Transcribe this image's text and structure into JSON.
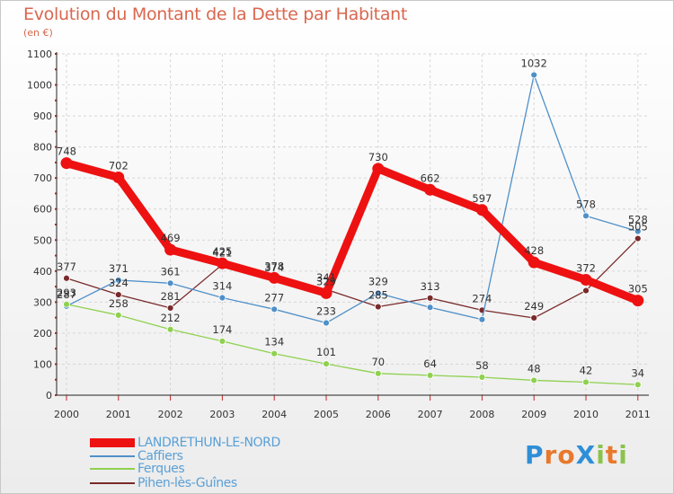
{
  "header": {
    "title": "Evolution du Montant de la Dette par Habitant",
    "subtitle": "(en €)"
  },
  "logo": {
    "text": "ProXiti",
    "letters": [
      "P",
      "r",
      "o",
      "X",
      "i",
      "t",
      "i"
    ],
    "colors": [
      "#2f8fd6",
      "#e8792b",
      "#e8792b",
      "#2f8fd6",
      "#8bc34a",
      "#e8792b",
      "#8bc34a"
    ]
  },
  "chart_data": {
    "type": "line",
    "title": "Evolution du Montant de la Dette par Habitant",
    "subtitle": "(en €)",
    "x": [
      "2000",
      "2001",
      "2002",
      "2003",
      "2004",
      "2005",
      "2006",
      "2007",
      "2008",
      "2009",
      "2010",
      "2011"
    ],
    "ylim": [
      0,
      1100
    ],
    "yticks": [
      0,
      100,
      200,
      300,
      400,
      500,
      600,
      700,
      800,
      900,
      1000,
      1100
    ],
    "grid": true,
    "legend_position": "bottom-left",
    "series": [
      {
        "name": "Pihen-lès-Guînes",
        "color": "#7a2a2a",
        "values": [
          377,
          324,
          281,
          421,
          374,
          341,
          285,
          313,
          274,
          249,
          337,
          505
        ],
        "labels": [
          "377",
          "324",
          "281",
          "421",
          "374",
          "341",
          "285",
          "313",
          "274",
          "249",
          "",
          "505"
        ]
      },
      {
        "name": "Caffiers",
        "color": "#4f90c8",
        "values": [
          287,
          371,
          361,
          314,
          277,
          233,
          329,
          283,
          244,
          1032,
          578,
          528
        ],
        "labels": [
          "287",
          "371",
          "361",
          "314",
          "277",
          "233",
          "329",
          "",
          "",
          "1032",
          "578",
          "528"
        ]
      },
      {
        "name": "Ferques",
        "color": "#8fd14f",
        "values": [
          293,
          258,
          212,
          174,
          134,
          101,
          70,
          64,
          58,
          48,
          42,
          34
        ],
        "labels": [
          "293",
          "258",
          "212",
          "174",
          "134",
          "101",
          "70",
          "64",
          "58",
          "48",
          "42",
          "34"
        ]
      },
      {
        "name": "LANDRETHUN-LE-NORD",
        "color": "#ee1111",
        "values": [
          748,
          702,
          469,
          425,
          378,
          329,
          730,
          662,
          597,
          428,
          372,
          305
        ],
        "labels": [
          "748",
          "702",
          "469",
          "425",
          "378",
          "329",
          "730",
          "662",
          "597",
          "428",
          "372",
          "305"
        ]
      }
    ],
    "legend": [
      {
        "name": "LANDRETHUN-LE-NORD",
        "color": "#ee1111"
      },
      {
        "name": "Caffiers",
        "color": "#4f90c8"
      },
      {
        "name": "Ferques",
        "color": "#8fd14f"
      },
      {
        "name": "Pihen-lès-Guînes",
        "color": "#7a2a2a"
      }
    ]
  }
}
